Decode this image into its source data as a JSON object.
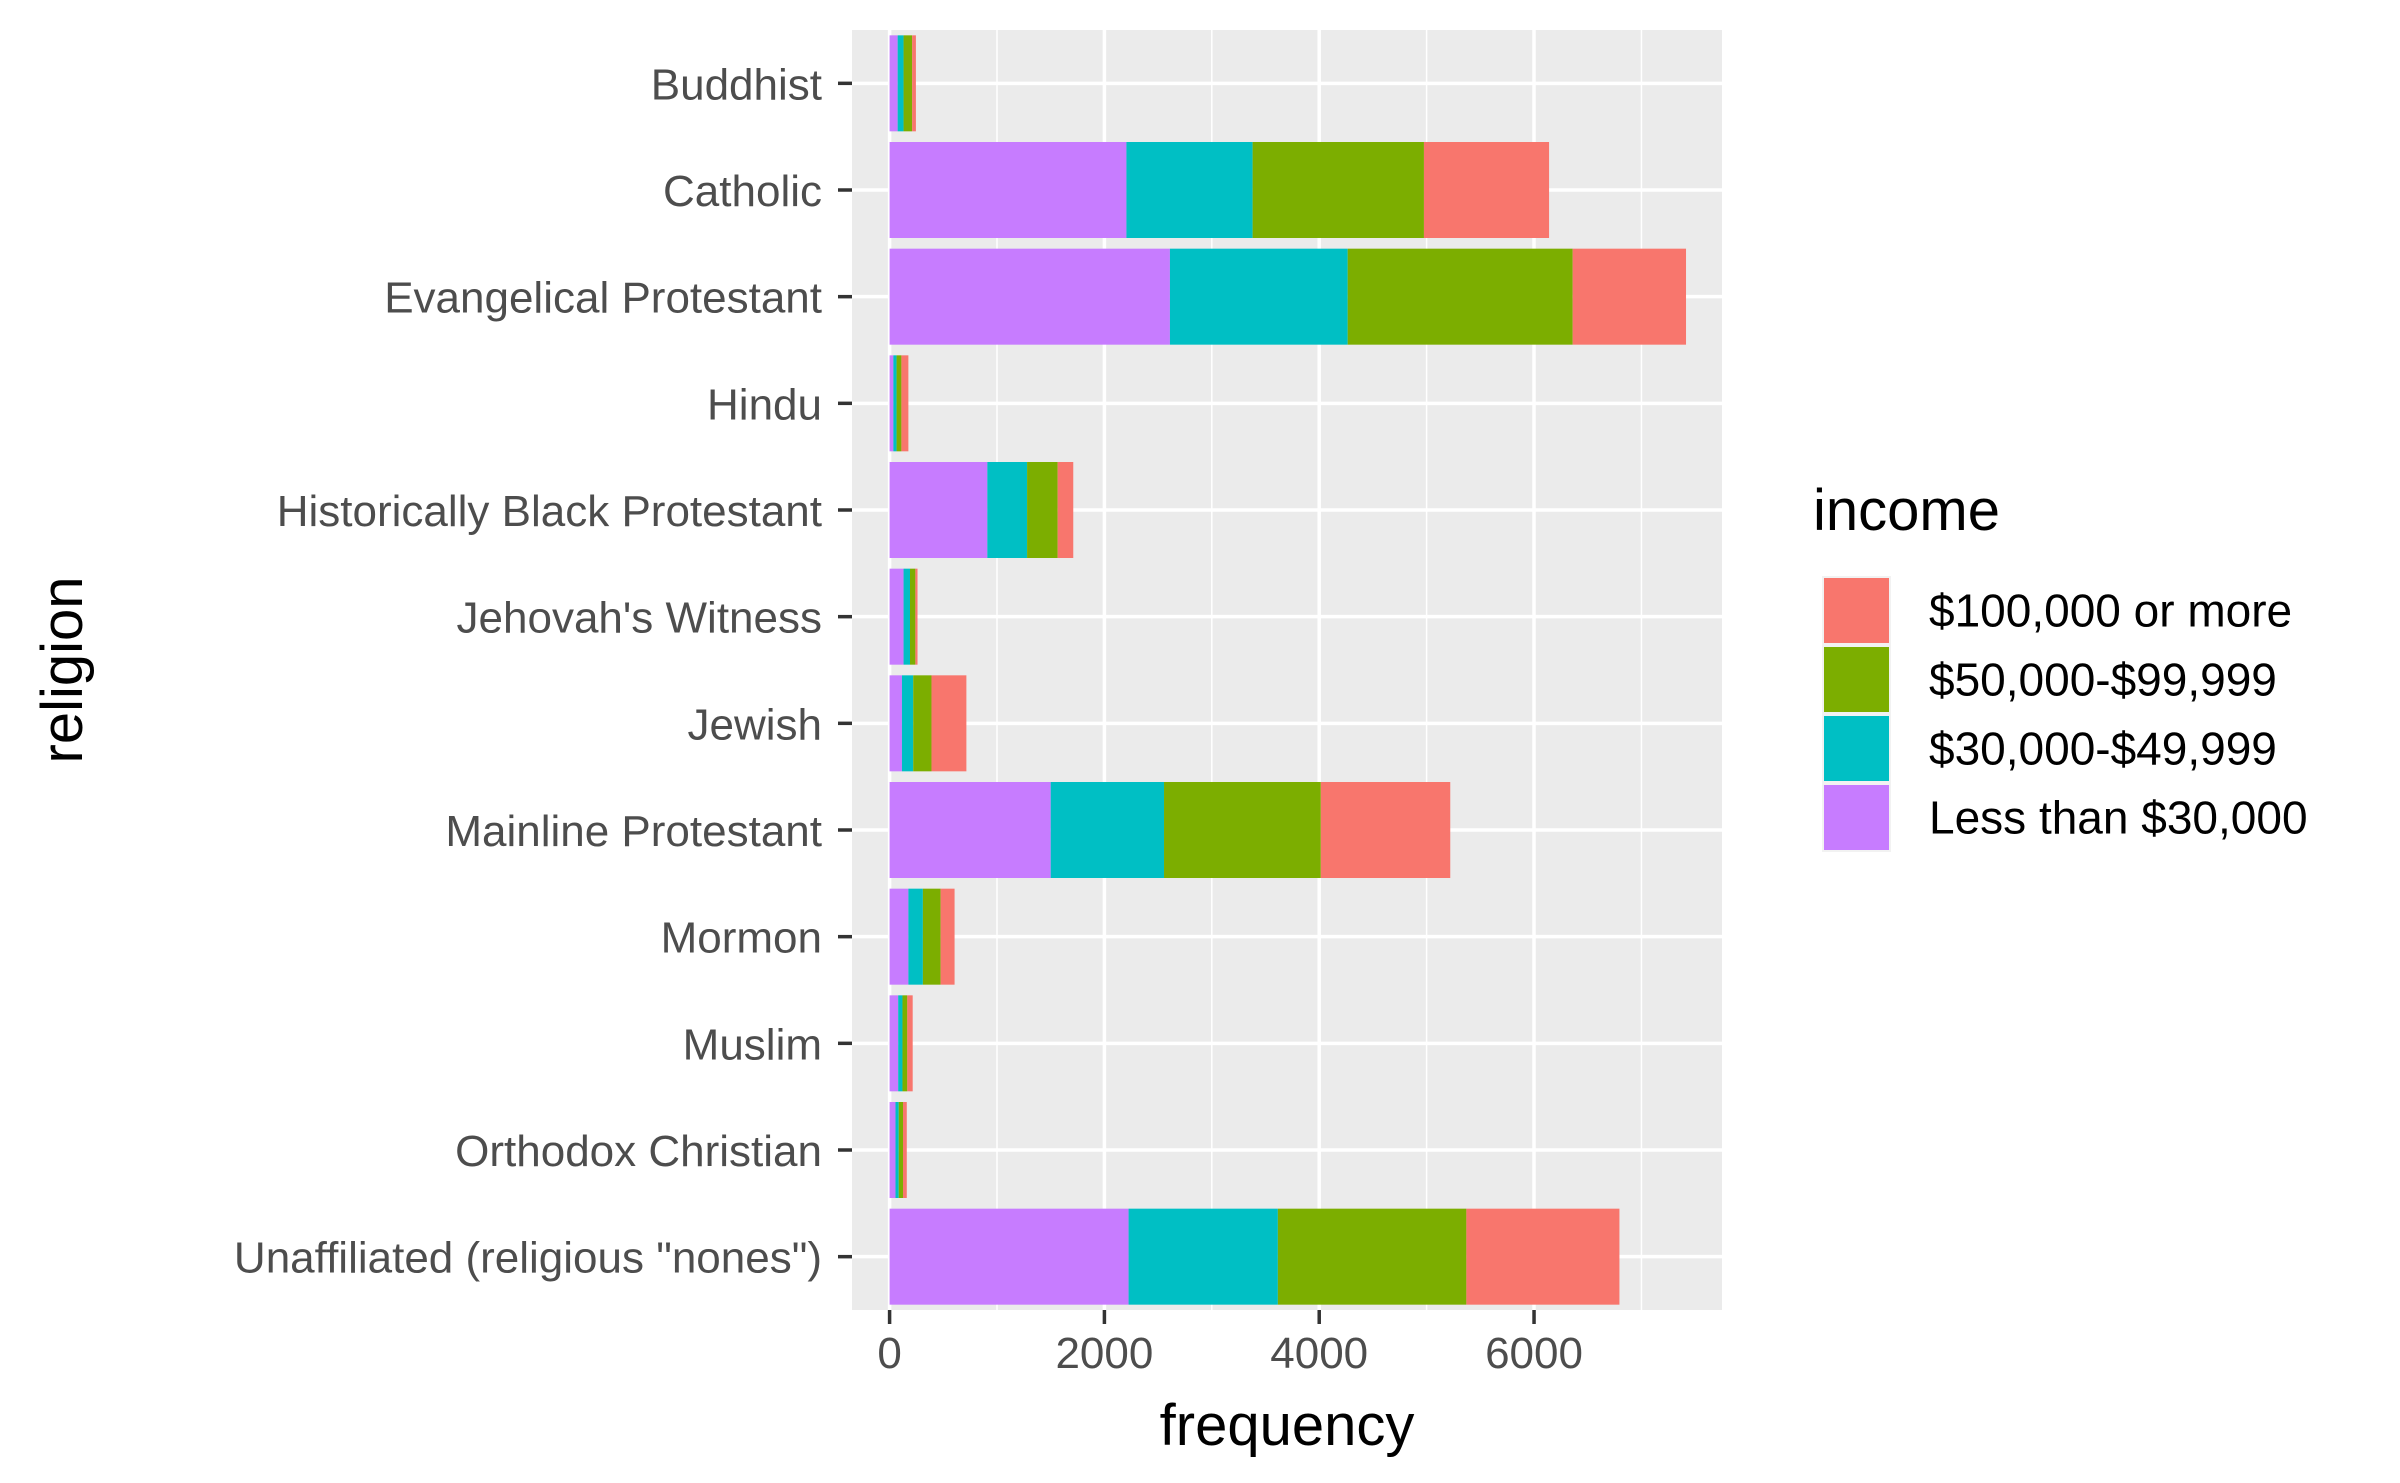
{
  "chart_data": {
    "type": "bar",
    "orientation": "horizontal",
    "stacked": true,
    "title": "",
    "xlabel": "frequency",
    "ylabel": "religion",
    "xlim": [
      -350,
      7750
    ],
    "x_ticks": [
      0,
      2000,
      4000,
      6000
    ],
    "grid": true,
    "legend_title": "income",
    "legend_position": "right",
    "categories": [
      "Buddhist",
      "Catholic",
      "Evangelical Protestant",
      "Hindu",
      "Historically Black Protestant",
      "Jehovah's Witness",
      "Jewish",
      "Mainline Protestant",
      "Mormon",
      "Muslim",
      "Orthodox Christian",
      "Unaffiliated (religious \"nones\")"
    ],
    "series": [
      {
        "name": "Less than $30,000",
        "color": "#C77CFF",
        "values": [
          75,
          2205,
          2610,
          35,
          910,
          130,
          115,
          1500,
          175,
          80,
          55,
          2225
        ]
      },
      {
        "name": "$30,000-$49,999",
        "color": "#00BFC4",
        "values": [
          55,
          1175,
          1655,
          30,
          370,
          60,
          105,
          1055,
          135,
          40,
          30,
          1390
        ]
      },
      {
        "name": "$50,000-$99,999",
        "color": "#7CAE00",
        "values": [
          80,
          1595,
          2095,
          45,
          285,
          50,
          170,
          1460,
          165,
          45,
          40,
          1755
        ]
      },
      {
        "name": "$100,000 or more",
        "color": "#F8766D",
        "values": [
          35,
          1165,
          1055,
          65,
          145,
          20,
          325,
          1205,
          130,
          50,
          35,
          1425
        ]
      }
    ],
    "legend_order": [
      "$100,000 or more",
      "$50,000-$99,999",
      "$30,000-$49,999",
      "Less than $30,000"
    ]
  }
}
